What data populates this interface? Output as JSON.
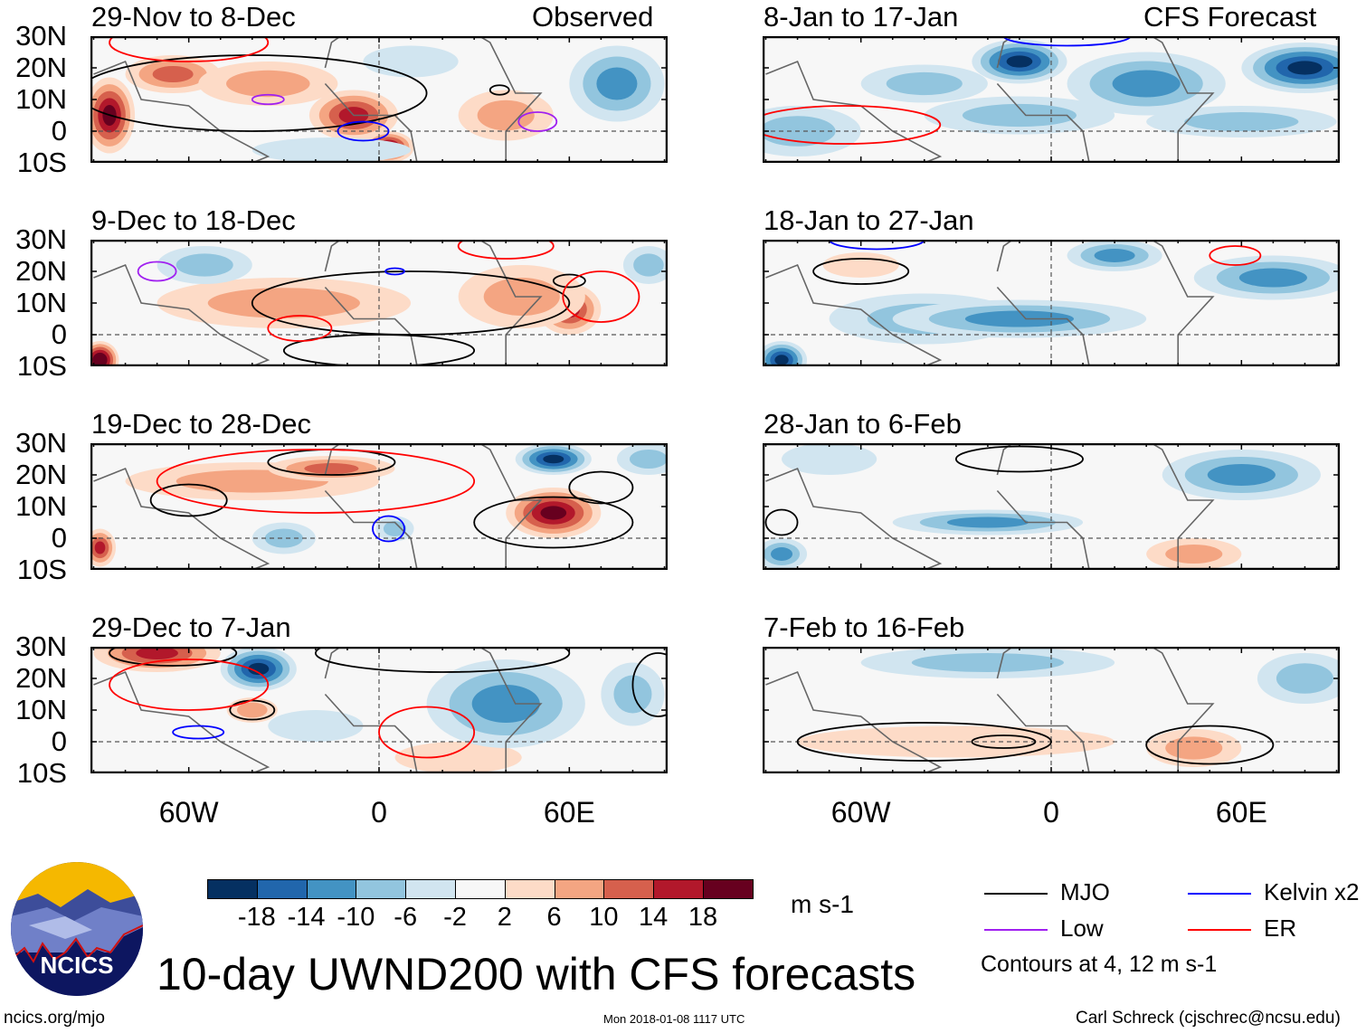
{
  "figure": {
    "title": "10-day UWND200 with CFS forecasts",
    "left_header": "Observed",
    "right_header": "CFS Forecast",
    "units": "m s-1",
    "url": "ncics.org/mjo",
    "timestamp": "Mon 2018-01-08 1117 UTC",
    "author": "Carl Schreck (cjschrec@ncsu.edu)",
    "logo_text": "NCICS",
    "contour_note": "Contours at 4, 12 m s-1"
  },
  "axes": {
    "lat_labels": [
      "30N",
      "20N",
      "10N",
      "0",
      "10S"
    ],
    "lat_values": [
      30,
      20,
      10,
      0,
      -10
    ],
    "lon_labels": [
      "60W",
      "0",
      "60E"
    ],
    "lon_values": [
      -60,
      0,
      60
    ],
    "lon_range": [
      -91,
      91
    ],
    "lat_range": [
      -10,
      30
    ]
  },
  "colorbar": {
    "labels": [
      "-18",
      "-14",
      "-10",
      "-6",
      "-2",
      "2",
      "6",
      "10",
      "14",
      "18"
    ],
    "colors": [
      "#053061",
      "#2166ac",
      "#4393c3",
      "#92c5de",
      "#d1e5f0",
      "#f7f7f7",
      "#fddbc7",
      "#f4a582",
      "#d6604d",
      "#b2182b",
      "#67001f"
    ]
  },
  "legend": [
    {
      "label": "MJO",
      "color": "#000000"
    },
    {
      "label": "Kelvin x2",
      "color": "#0000ff"
    },
    {
      "label": "Low",
      "color": "#a020f0"
    },
    {
      "label": "ER",
      "color": "#ff0000"
    }
  ],
  "chart_data": {
    "type": "heatmap",
    "variable": "200-hPa zonal wind anomaly (m s-1)",
    "panels": [
      {
        "title": "29-Nov to 8-Dec",
        "group": "observed",
        "anomalies": [
          {
            "lon": -85,
            "lat": 5,
            "rx": 8,
            "ry": 12,
            "v": 20
          },
          {
            "lon": -65,
            "lat": 18,
            "rx": 15,
            "ry": 6,
            "v": 12
          },
          {
            "lon": -35,
            "lat": 15,
            "rx": 22,
            "ry": 7,
            "v": 8
          },
          {
            "lon": -8,
            "lat": 5,
            "rx": 14,
            "ry": 8,
            "v": 16
          },
          {
            "lon": 3,
            "lat": -5,
            "rx": 8,
            "ry": 5,
            "v": 20
          },
          {
            "lon": 40,
            "lat": 5,
            "rx": 15,
            "ry": 8,
            "v": 6
          },
          {
            "lon": 75,
            "lat": 15,
            "rx": 15,
            "ry": 12,
            "v": -12
          },
          {
            "lon": -15,
            "lat": -6,
            "rx": 25,
            "ry": 4,
            "v": -2
          },
          {
            "lon": 10,
            "lat": 22,
            "rx": 15,
            "ry": 5,
            "v": -4
          }
        ],
        "contours": [
          {
            "type": "MJO",
            "lon": -40,
            "lat": 12,
            "rx": 55,
            "ry": 12
          },
          {
            "type": "MJO",
            "lon": 38,
            "lat": 13,
            "rx": 3,
            "ry": 1.5
          },
          {
            "type": "Kelvin",
            "lon": -5,
            "lat": 0,
            "rx": 8,
            "ry": 3
          },
          {
            "type": "Low",
            "lon": 50,
            "lat": 3,
            "rx": 6,
            "ry": 3
          },
          {
            "type": "Low",
            "lon": -35,
            "lat": 10,
            "rx": 5,
            "ry": 1.5
          },
          {
            "type": "ER",
            "lon": -60,
            "lat": 28,
            "rx": 25,
            "ry": 6
          }
        ]
      },
      {
        "title": "9-Dec to 18-Dec",
        "group": "observed",
        "anomalies": [
          {
            "lon": -30,
            "lat": 10,
            "rx": 40,
            "ry": 8,
            "v": 6
          },
          {
            "lon": -88,
            "lat": -8,
            "rx": 6,
            "ry": 6,
            "v": 22
          },
          {
            "lon": 60,
            "lat": 8,
            "rx": 10,
            "ry": 8,
            "v": 16
          },
          {
            "lon": 45,
            "lat": 12,
            "rx": 20,
            "ry": 10,
            "v": 8
          },
          {
            "lon": -55,
            "lat": 22,
            "rx": 15,
            "ry": 6,
            "v": -8
          },
          {
            "lon": 85,
            "lat": 22,
            "rx": 8,
            "ry": 6,
            "v": -8
          }
        ],
        "contours": [
          {
            "type": "MJO",
            "lon": 10,
            "lat": 10,
            "rx": 50,
            "ry": 10
          },
          {
            "type": "MJO",
            "lon": 60,
            "lat": 17,
            "rx": 5,
            "ry": 2
          },
          {
            "type": "MJO",
            "lon": 0,
            "lat": -5,
            "rx": 30,
            "ry": 5
          },
          {
            "type": "ER",
            "lon": 70,
            "lat": 12,
            "rx": 12,
            "ry": 8
          },
          {
            "type": "ER",
            "lon": -25,
            "lat": 2,
            "rx": 10,
            "ry": 4
          },
          {
            "type": "ER",
            "lon": 40,
            "lat": 28,
            "rx": 15,
            "ry": 4
          },
          {
            "type": "Kelvin",
            "lon": 5,
            "lat": 20,
            "rx": 3,
            "ry": 1
          },
          {
            "type": "Low",
            "lon": -70,
            "lat": 20,
            "rx": 6,
            "ry": 3
          }
        ]
      },
      {
        "title": "19-Dec to 28-Dec",
        "group": "observed",
        "anomalies": [
          {
            "lon": -40,
            "lat": 18,
            "rx": 40,
            "ry": 6,
            "v": 8
          },
          {
            "lon": -15,
            "lat": 22,
            "rx": 20,
            "ry": 4,
            "v": 12
          },
          {
            "lon": 55,
            "lat": 8,
            "rx": 15,
            "ry": 8,
            "v": 18
          },
          {
            "lon": -88,
            "lat": -3,
            "rx": 5,
            "ry": 6,
            "v": 16
          },
          {
            "lon": 55,
            "lat": 25,
            "rx": 12,
            "ry": 5,
            "v": -20
          },
          {
            "lon": -30,
            "lat": 0,
            "rx": 10,
            "ry": 5,
            "v": -6
          },
          {
            "lon": 5,
            "lat": 3,
            "rx": 6,
            "ry": 4,
            "v": -6
          },
          {
            "lon": 85,
            "lat": 25,
            "rx": 10,
            "ry": 5,
            "v": -6
          }
        ],
        "contours": [
          {
            "type": "MJO",
            "lon": -60,
            "lat": 12,
            "rx": 12,
            "ry": 5
          },
          {
            "type": "MJO",
            "lon": -15,
            "lat": 24,
            "rx": 20,
            "ry": 4
          },
          {
            "type": "MJO",
            "lon": 70,
            "lat": 16,
            "rx": 10,
            "ry": 5
          },
          {
            "type": "MJO",
            "lon": 55,
            "lat": 5,
            "rx": 25,
            "ry": 8
          },
          {
            "type": "ER",
            "lon": -20,
            "lat": 18,
            "rx": 50,
            "ry": 10
          },
          {
            "type": "Kelvin",
            "lon": 3,
            "lat": 3,
            "rx": 5,
            "ry": 4
          }
        ]
      },
      {
        "title": "29-Dec to 7-Jan",
        "group": "observed",
        "anomalies": [
          {
            "lon": -70,
            "lat": 28,
            "rx": 20,
            "ry": 6,
            "v": 16
          },
          {
            "lon": -40,
            "lat": 10,
            "rx": 8,
            "ry": 4,
            "v": 8
          },
          {
            "lon": 25,
            "lat": -5,
            "rx": 20,
            "ry": 5,
            "v": 4
          },
          {
            "lon": -38,
            "lat": 23,
            "rx": 12,
            "ry": 7,
            "v": -20
          },
          {
            "lon": 40,
            "lat": 12,
            "rx": 25,
            "ry": 14,
            "v": -12
          },
          {
            "lon": 80,
            "lat": 15,
            "rx": 10,
            "ry": 10,
            "v": -6
          },
          {
            "lon": -20,
            "lat": 5,
            "rx": 15,
            "ry": 5,
            "v": -4
          }
        ],
        "contours": [
          {
            "type": "MJO",
            "lon": -65,
            "lat": 28,
            "rx": 20,
            "ry": 4
          },
          {
            "type": "MJO",
            "lon": -40,
            "lat": 10,
            "rx": 7,
            "ry": 3
          },
          {
            "type": "MJO",
            "lon": 20,
            "lat": 28,
            "rx": 40,
            "ry": 6
          },
          {
            "type": "MJO",
            "lon": 88,
            "lat": 18,
            "rx": 8,
            "ry": 10
          },
          {
            "type": "ER",
            "lon": -60,
            "lat": 18,
            "rx": 25,
            "ry": 8
          },
          {
            "type": "ER",
            "lon": 15,
            "lat": 3,
            "rx": 15,
            "ry": 8
          },
          {
            "type": "Kelvin",
            "lon": -57,
            "lat": 3,
            "rx": 8,
            "ry": 2
          }
        ]
      },
      {
        "title": "8-Jan to 17-Jan",
        "group": "forecast",
        "anomalies": [
          {
            "lon": -40,
            "lat": 15,
            "rx": 20,
            "ry": 6,
            "v": -8
          },
          {
            "lon": -10,
            "lat": 5,
            "rx": 30,
            "ry": 6,
            "v": -8
          },
          {
            "lon": 60,
            "lat": 3,
            "rx": 30,
            "ry": 5,
            "v": -8
          },
          {
            "lon": -80,
            "lat": 0,
            "rx": 20,
            "ry": 8,
            "v": -6
          },
          {
            "lon": 30,
            "lat": 15,
            "rx": 25,
            "ry": 10,
            "v": -12
          },
          {
            "lon": -10,
            "lat": 22,
            "rx": 15,
            "ry": 7,
            "v": -20
          },
          {
            "lon": 80,
            "lat": 20,
            "rx": 20,
            "ry": 8,
            "v": -20
          }
        ],
        "contours": [
          {
            "type": "ER",
            "lon": -65,
            "lat": 2,
            "rx": 30,
            "ry": 6
          },
          {
            "type": "Kelvin",
            "lon": 5,
            "lat": 30,
            "rx": 20,
            "ry": 3
          }
        ]
      },
      {
        "title": "18-Jan to 27-Jan",
        "group": "forecast",
        "anomalies": [
          {
            "lon": -40,
            "lat": 5,
            "rx": 30,
            "ry": 8,
            "v": -6
          },
          {
            "lon": -10,
            "lat": 5,
            "rx": 40,
            "ry": 6,
            "v": -12
          },
          {
            "lon": -85,
            "lat": -8,
            "rx": 8,
            "ry": 6,
            "v": -20
          },
          {
            "lon": 20,
            "lat": 25,
            "rx": 15,
            "ry": 5,
            "v": -10
          },
          {
            "lon": 70,
            "lat": 18,
            "rx": 25,
            "ry": 7,
            "v": -10
          },
          {
            "lon": -60,
            "lat": 22,
            "rx": 12,
            "ry": 4,
            "v": 4
          }
        ],
        "contours": [
          {
            "type": "MJO",
            "lon": -60,
            "lat": 20,
            "rx": 15,
            "ry": 4
          },
          {
            "type": "ER",
            "lon": 58,
            "lat": 25,
            "rx": 8,
            "ry": 3
          },
          {
            "type": "Kelvin",
            "lon": -55,
            "lat": 30,
            "rx": 15,
            "ry": 3
          }
        ]
      },
      {
        "title": "28-Jan to 6-Feb",
        "group": "forecast",
        "anomalies": [
          {
            "lon": 60,
            "lat": 20,
            "rx": 25,
            "ry": 8,
            "v": -10
          },
          {
            "lon": -20,
            "lat": 5,
            "rx": 30,
            "ry": 4,
            "v": -10
          },
          {
            "lon": -70,
            "lat": 25,
            "rx": 15,
            "ry": 5,
            "v": -4
          },
          {
            "lon": -85,
            "lat": -5,
            "rx": 8,
            "ry": 5,
            "v": -10
          },
          {
            "lon": 45,
            "lat": -5,
            "rx": 15,
            "ry": 5,
            "v": 6
          }
        ],
        "contours": [
          {
            "type": "MJO",
            "lon": -10,
            "lat": 25,
            "rx": 20,
            "ry": 4
          },
          {
            "type": "MJO",
            "lon": -85,
            "lat": 5,
            "rx": 5,
            "ry": 4
          }
        ]
      },
      {
        "title": "7-Feb to 16-Feb",
        "group": "forecast",
        "anomalies": [
          {
            "lon": -20,
            "lat": 25,
            "rx": 40,
            "ry": 5,
            "v": -6
          },
          {
            "lon": 80,
            "lat": 20,
            "rx": 15,
            "ry": 8,
            "v": -6
          },
          {
            "lon": -30,
            "lat": 0,
            "rx": 50,
            "ry": 5,
            "v": 4
          },
          {
            "lon": 45,
            "lat": -2,
            "rx": 15,
            "ry": 6,
            "v": 6
          }
        ],
        "contours": [
          {
            "type": "MJO",
            "lon": -40,
            "lat": 0,
            "rx": 40,
            "ry": 6
          },
          {
            "type": "MJO",
            "lon": -15,
            "lat": 0,
            "rx": 10,
            "ry": 2
          },
          {
            "type": "MJO",
            "lon": 50,
            "lat": -1,
            "rx": 20,
            "ry": 6
          }
        ]
      }
    ]
  }
}
